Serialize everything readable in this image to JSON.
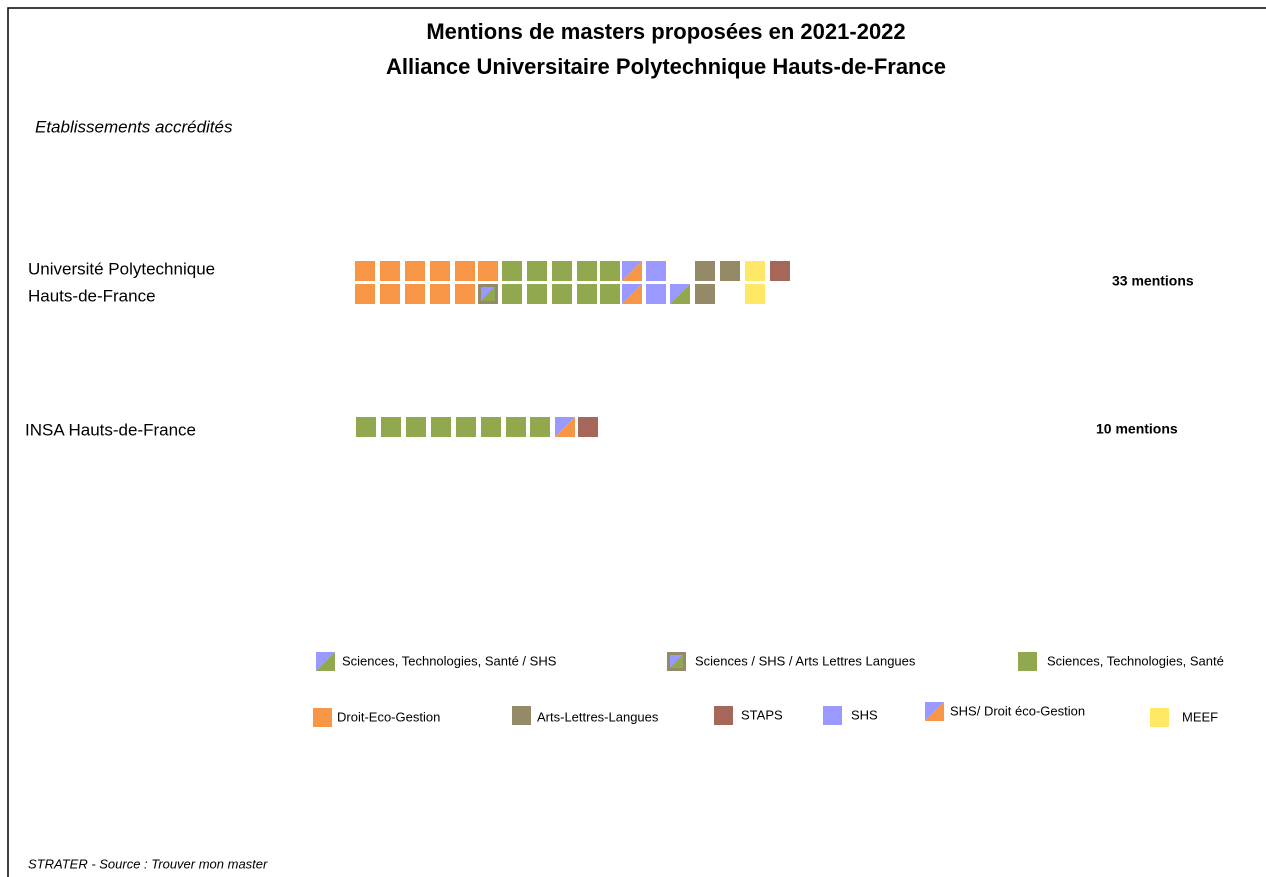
{
  "title": [
    "Mentions de masters proposées en 2021-2022",
    "Alliance Universitaire Polytechnique Hauts-de-France"
  ],
  "section_label": "Etablissements accrédités",
  "institutions": [
    {
      "name": [
        "Université Polytechnique",
        "Hauts-de-France"
      ],
      "count": "33 mentions"
    },
    {
      "name": [
        "INSA Hauts-de-France"
      ],
      "count": "10 mentions"
    }
  ],
  "legend": [
    "Sciences, Technologies, Santé / SHS",
    "Sciences  / SHS /  Arts Lettres Langues",
    "Sciences, Technologies, Santé",
    "Droit-Eco-Gestion",
    "Arts-Lettres-Langues",
    "STAPS",
    "SHS",
    "SHS/ Droit éco-Gestion",
    "MEEF"
  ],
  "footer": "STRATER - Source : Trouver mon master"
}
